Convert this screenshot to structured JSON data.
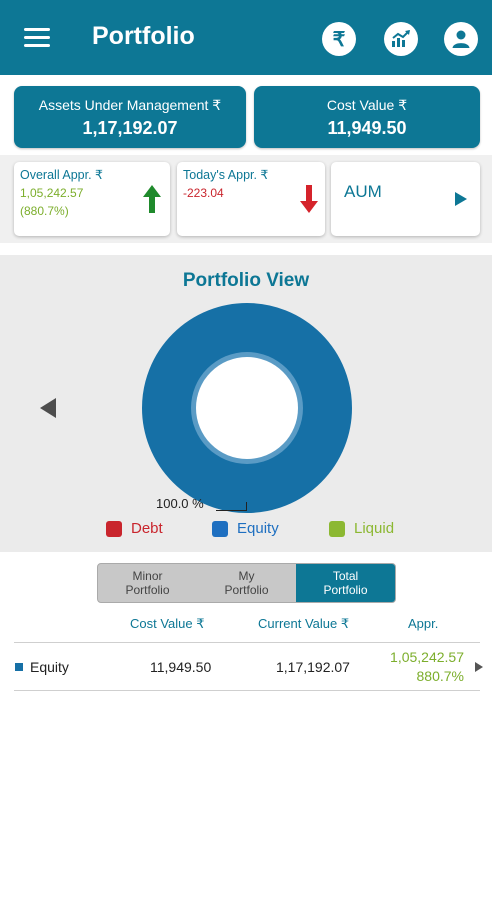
{
  "header": {
    "title": "Portfolio",
    "icons": [
      "menu-icon",
      "rupee-icon",
      "chart-icon",
      "user-icon"
    ]
  },
  "summary": {
    "aum_label": "Assets Under Management ₹",
    "aum_value": "1,17,192.07",
    "cost_label": "Cost Value ₹",
    "cost_value": "11,949.50"
  },
  "cards": {
    "overall": {
      "label": "Overall Appr. ₹",
      "value": "1,05,242.57",
      "percent": "(880.7%)"
    },
    "today": {
      "label": "Today's Appr. ₹",
      "value": "-223.04"
    },
    "aum": {
      "label": "AUM"
    }
  },
  "portfolio_view": {
    "title": "Portfolio View",
    "slice_label": "100.0 %"
  },
  "legend": [
    {
      "label": "Debt",
      "color": "#c9252d"
    },
    {
      "label": "Equity",
      "color": "#1e6fc0"
    },
    {
      "label": "Liquid",
      "color": "#8cb832"
    }
  ],
  "tabs": [
    {
      "label": "Minor\nPortfolio"
    },
    {
      "label": "My\nPortfolio"
    },
    {
      "label": "Total\nPortfolio"
    }
  ],
  "table": {
    "headers": [
      "Cost Value ₹",
      "Current Value ₹",
      "Appr."
    ],
    "rows": [
      {
        "name": "Equity",
        "cost": "11,949.50",
        "current": "1,17,192.07",
        "appr": "1,05,242.57",
        "appr_pct": "880.7%"
      }
    ]
  },
  "colors": {
    "primary": "#0d7795",
    "positive": "#7cae2c",
    "negative": "#c9252d",
    "up_arrow": "#1f8a2c",
    "down_arrow": "#d5232b",
    "donut": "#1670a6"
  }
}
